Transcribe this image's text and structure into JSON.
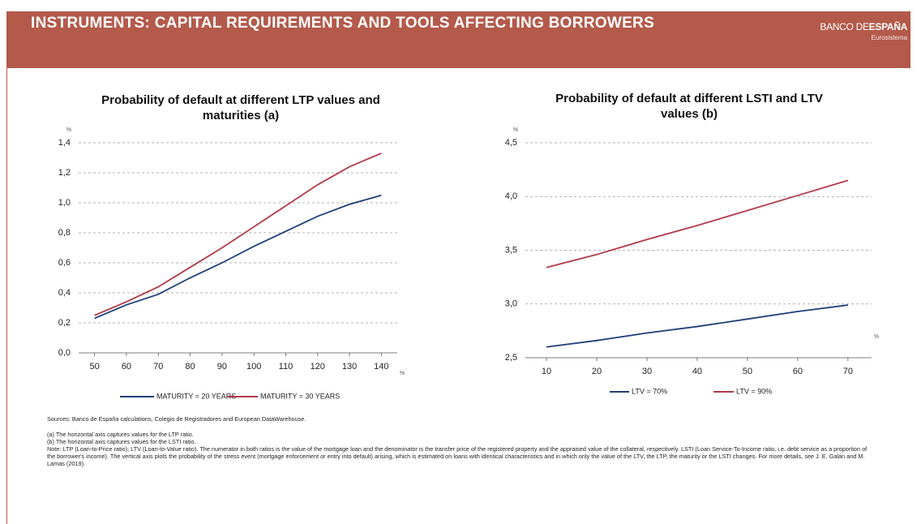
{
  "header": {
    "title": "INSTRUMENTS: CAPITAL REQUIREMENTS AND TOOLS AFFECTING BORROWERS",
    "logo_main": "BANCO DE",
    "logo_bold": "ESPAÑA",
    "logo_sub": "Eurosistema"
  },
  "chart_data": [
    {
      "type": "line",
      "title": "Probability of default at different LTP values and maturities (a)",
      "y_unit": "%",
      "x_unit": "%",
      "x": [
        50,
        60,
        70,
        80,
        90,
        100,
        110,
        120,
        130,
        140
      ],
      "xlim": [
        45,
        145
      ],
      "xticks": [
        50,
        60,
        70,
        80,
        90,
        100,
        110,
        120,
        130,
        140
      ],
      "ylim": [
        0,
        1.4
      ],
      "yticks": [
        {
          "value": 0,
          "label": "0,0"
        },
        {
          "value": 0.2,
          "label": "0,2"
        },
        {
          "value": 0.4,
          "label": "0,4"
        },
        {
          "value": 0.6,
          "label": "0,6"
        },
        {
          "value": 0.8,
          "label": "0,8"
        },
        {
          "value": 1.0,
          "label": "1,0"
        },
        {
          "value": 1.2,
          "label": "1,2"
        },
        {
          "value": 1.4,
          "label": "1,4"
        }
      ],
      "grid": true,
      "series": [
        {
          "name": "MATURITY = 20 YEARS",
          "color": "#1f3f7a",
          "values": [
            0.23,
            0.32,
            0.39,
            0.5,
            0.6,
            0.71,
            0.81,
            0.91,
            0.99,
            1.05
          ]
        },
        {
          "name": "MATURITY = 30 YEARS",
          "color": "#b03a48",
          "values": [
            0.25,
            0.34,
            0.44,
            0.57,
            0.7,
            0.84,
            0.98,
            1.12,
            1.24,
            1.33
          ]
        }
      ]
    },
    {
      "type": "line",
      "title": "Probability of default at different LSTI and LTV values (b)",
      "y_unit": "%",
      "x_unit": "%",
      "x": [
        10,
        20,
        30,
        40,
        50,
        60,
        70
      ],
      "xlim": [
        5.8,
        74.7
      ],
      "xticks": [
        10,
        20,
        30,
        40,
        50,
        60,
        70
      ],
      "ylim": [
        2.5,
        4.5
      ],
      "yticks": [
        {
          "value": 2.5,
          "label": "2,5"
        },
        {
          "value": 3.0,
          "label": "3,0"
        },
        {
          "value": 3.5,
          "label": "3,5"
        },
        {
          "value": 4.0,
          "label": "4,0"
        },
        {
          "value": 4.5,
          "label": "4,5"
        }
      ],
      "grid": true,
      "series": [
        {
          "name": "LTV = 70%",
          "color": "#1f3f7a",
          "values": [
            2.6,
            2.66,
            2.73,
            2.79,
            2.86,
            2.93,
            2.99
          ]
        },
        {
          "name": "LTV = 90%",
          "color": "#b03a48",
          "values": [
            3.34,
            3.46,
            3.6,
            3.73,
            3.87,
            4.01,
            4.15
          ]
        }
      ]
    }
  ],
  "sources": "Sources: Banco de España calculations, Colegio de Registradores and European DataWarehouse.",
  "notes": [
    "(a)   The horizontal axis captures values for the LTP ratio.",
    "(b)   The horizontal axis captures values for the LSTI ratio.",
    "Note: LTP (Loan-to-Price ratio); LTV (Loan-to-Value ratio). The numerator in both ratios is the value of the mortgage loan and the denominator is the transfer price of the registered property and the appraised value of the collateral, respectively. LSTI (Loan Service-To-Income ratio, i.e. debt service as a proportion of the borrower's income). The vertical axis plots the probability of the stress event (mortgage enforcement or entry into default) arising, which is estimated on loans with identical characteristics and in which only the value of the LTV, the LTP, the maturity or the LSTI changes. For more details, see J. E. Galán and M. Lamas (2019)."
  ]
}
